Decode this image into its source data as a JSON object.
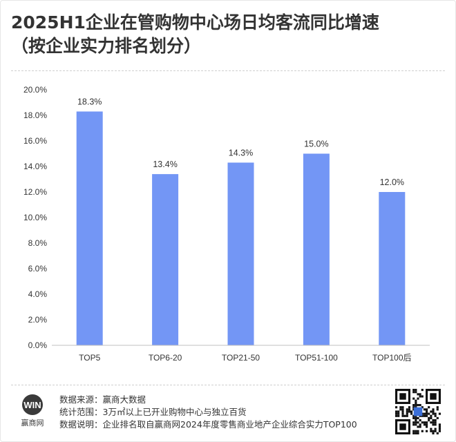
{
  "header": {
    "title_line1": "2025H1企业在管购物中心场日均客流同比增速",
    "title_line2": "（按企业实力排名划分）"
  },
  "chart_data": {
    "type": "bar",
    "categories": [
      "TOP5",
      "TOP6-20",
      "TOP21-50",
      "TOP51-100",
      "TOP100后"
    ],
    "values": [
      18.3,
      13.4,
      14.3,
      15.0,
      12.0
    ],
    "value_labels": [
      "18.3%",
      "13.4%",
      "14.3%",
      "15.0%",
      "12.0%"
    ],
    "ylim": [
      0,
      20
    ],
    "yticks": [
      0,
      2,
      4,
      6,
      8,
      10,
      12,
      14,
      16,
      18,
      20
    ],
    "ytick_labels": [
      "0.0%",
      "2.0%",
      "4.0%",
      "6.0%",
      "8.0%",
      "10.0%",
      "12.0%",
      "14.0%",
      "16.0%",
      "18.0%",
      "20.0%"
    ],
    "bar_color": "#7396f5",
    "grid": false,
    "legend": "none"
  },
  "footer": {
    "brand_logo": "WIN",
    "brand_name": "赢商网",
    "lines": [
      {
        "key": "数据来源：",
        "value": "赢商大数据"
      },
      {
        "key": "统计范围：",
        "value": "3万㎡以上已开业购物中心与独立百货"
      },
      {
        "key": "数据说明：",
        "value": "企业排名取自赢商网2024年度零售商业地产企业综合实力TOP100"
      }
    ]
  },
  "icons": {
    "qr": "qr-code-icon",
    "logo": "brand-logo-icon"
  }
}
